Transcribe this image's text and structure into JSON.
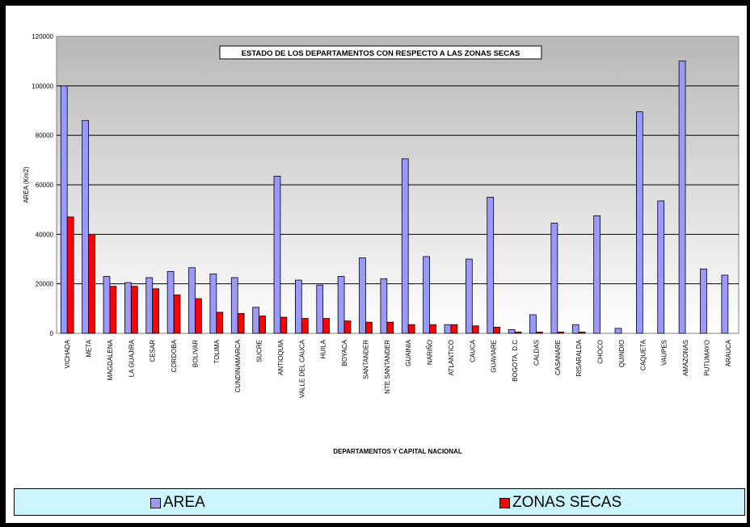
{
  "chart_data": {
    "type": "bar",
    "title": "ESTADO DE LOS DEPARTAMENTOS CON RESPECTO A LAS ZONAS SECAS",
    "xlabel": "DEPARTAMENTOS Y CAPITAL NACIONAL",
    "ylabel": "AREA (Km2)",
    "ylim": [
      0,
      120000
    ],
    "yticks": [
      "0",
      "20000",
      "40000",
      "60000",
      "80000",
      "100000",
      "120000"
    ],
    "grid": true,
    "legend_position": "bottom",
    "categories": [
      "VICHADA",
      "META",
      "MAGDALENA",
      "LA GUAJIRA",
      "CESAR",
      "CORDOBA",
      "BOLIVAR",
      "TOLIMA",
      "CUNDINAMARCA",
      "SUCRE",
      "ANTIOQUIA",
      "VALLE DEL CAUCA",
      "HUILA",
      "BOYACA",
      "SANTANDER",
      "NTE SANTANDER",
      "GUAINIA",
      "NARIÑO",
      "ATLANTICO",
      "CAUCA",
      "GUAVIARE",
      "BOGOTA, D.C",
      "CALDAS",
      "CASANARE",
      "RISARALDA",
      "CHOCO",
      "QUINDIO",
      "CAQUETA",
      "VAUPES",
      "AMAZONAS",
      "PUTUMAYO",
      "ARAUCA"
    ],
    "series": [
      {
        "name": "AREA",
        "color": "#9999ff",
        "values": [
          100000,
          86000,
          23000,
          20500,
          22500,
          25000,
          26500,
          24000,
          22500,
          10500,
          63500,
          21500,
          19500,
          23000,
          30500,
          22000,
          70500,
          31000,
          3500,
          30000,
          55000,
          1500,
          7500,
          44500,
          3500,
          47500,
          2000,
          89500,
          53500,
          110000,
          26000,
          23500
        ]
      },
      {
        "name": "ZONAS SECAS",
        "color": "#ff0000",
        "values": [
          47000,
          40000,
          19000,
          19000,
          18000,
          15500,
          14000,
          8500,
          8000,
          7000,
          6500,
          6000,
          6000,
          5000,
          4500,
          4500,
          3500,
          3500,
          3500,
          3000,
          2500,
          500,
          500,
          500,
          500,
          0,
          0,
          0,
          0,
          0,
          0,
          0
        ]
      }
    ]
  },
  "legend": {
    "items": [
      {
        "label": "AREA",
        "color": "#9999ff"
      },
      {
        "label": "ZONAS SECAS",
        "color": "#ff0000"
      }
    ]
  }
}
